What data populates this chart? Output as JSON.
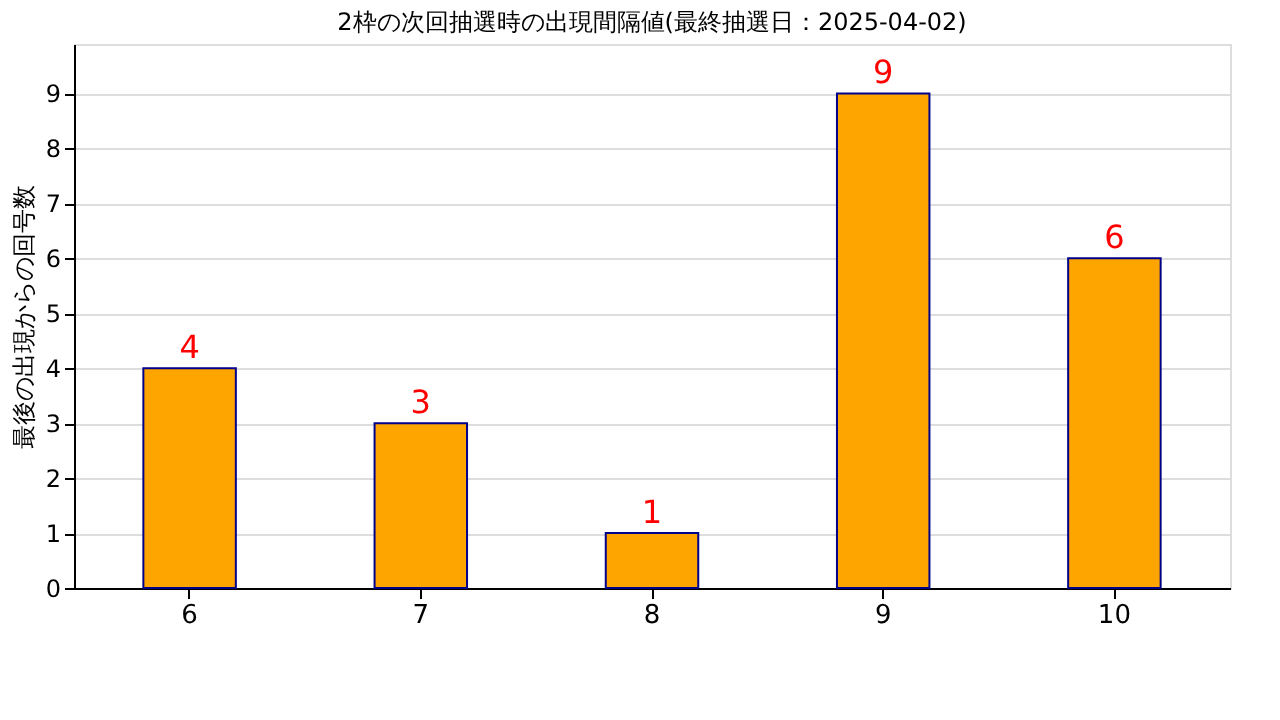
{
  "chart_data": {
    "type": "bar",
    "title": "2枠の次回抽選時の出現間隔値(最終抽選日：2025-04-02)",
    "ylabel": "最後の出現からの回号数",
    "categories": [
      "6",
      "7",
      "8",
      "9",
      "10"
    ],
    "values": [
      4,
      3,
      1,
      9,
      6
    ],
    "color": "#ffa500",
    "ylim": [
      0,
      9.9
    ],
    "yticks": [
      0,
      1,
      2,
      3,
      4,
      5,
      6,
      7,
      8,
      9
    ],
    "grid": "y",
    "data_labels": true
  }
}
